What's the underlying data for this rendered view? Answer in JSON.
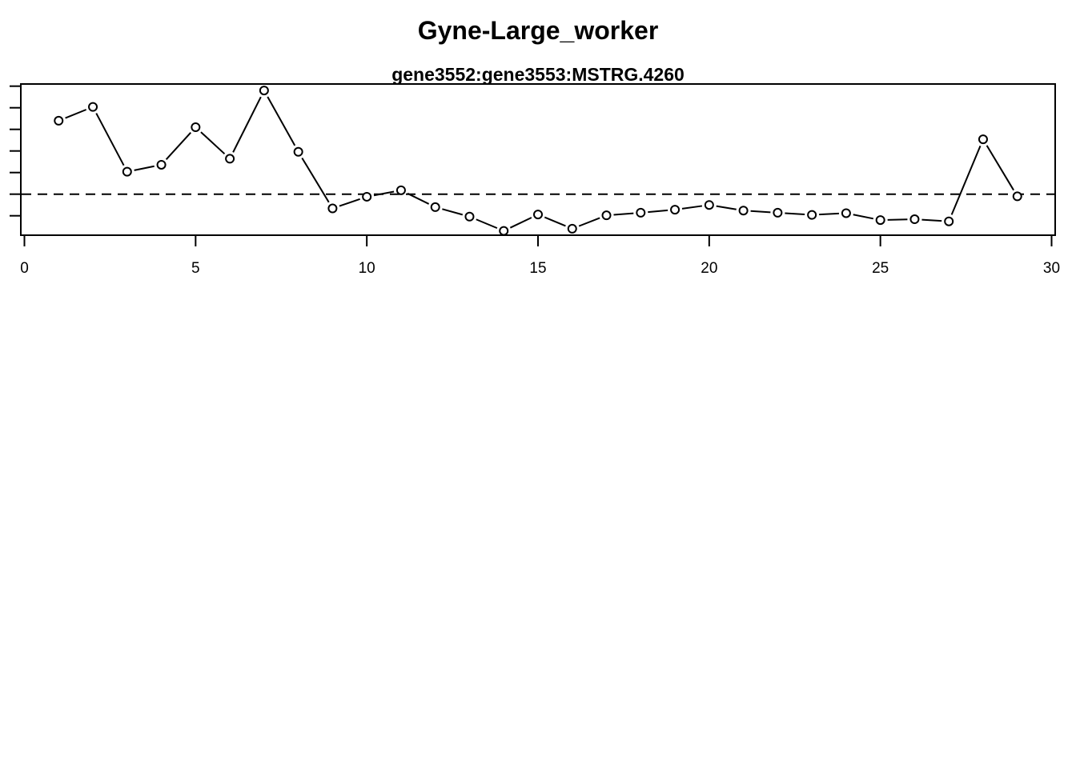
{
  "chart_data": {
    "type": "line",
    "title": "Gyne-Large_worker",
    "subtitle": "gene3552:gene3553:MSTRG.4260",
    "xlabel": "",
    "ylabel": "",
    "xlim": [
      0,
      30
    ],
    "ylim": [
      -0.95,
      2.55
    ],
    "x_ticks": [
      0,
      5,
      10,
      15,
      20,
      25,
      30
    ],
    "y_ticks": [
      -0.5,
      0,
      0.5,
      1,
      1.5,
      2,
      2.5
    ],
    "y_tick_labels_visible": false,
    "reference_line": {
      "y": 0,
      "style": "dashed"
    },
    "grid": false,
    "marker": "open-circle",
    "x": [
      1,
      2,
      3,
      4,
      5,
      6,
      7,
      8,
      9,
      10,
      11,
      12,
      13,
      14,
      15,
      16,
      17,
      18,
      19,
      20,
      21,
      22,
      23,
      24,
      25,
      26,
      27,
      28,
      29
    ],
    "values": [
      1.7,
      2.02,
      0.52,
      0.68,
      1.55,
      0.82,
      2.4,
      0.98,
      -0.33,
      -0.06,
      0.09,
      -0.3,
      -0.52,
      -0.85,
      -0.47,
      -0.8,
      -0.49,
      -0.43,
      -0.36,
      -0.25,
      -0.38,
      -0.43,
      -0.48,
      -0.44,
      -0.6,
      -0.58,
      -0.63,
      1.27,
      -0.05
    ],
    "colors": {
      "line": "#000000",
      "marker_fill": "#ffffff",
      "axis": "#000000"
    }
  }
}
